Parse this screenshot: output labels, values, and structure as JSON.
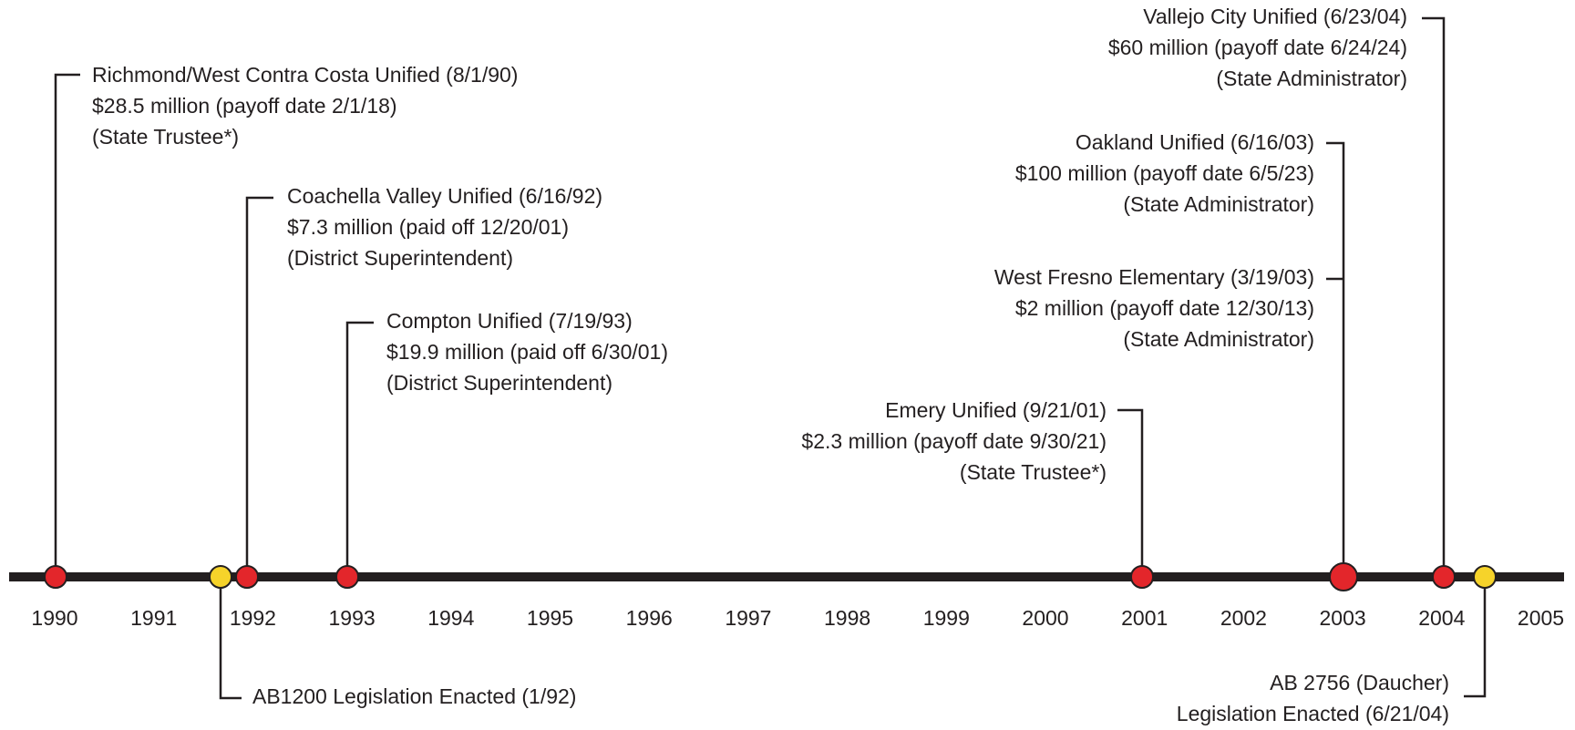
{
  "years": [
    "1990",
    "1991",
    "1992",
    "1993",
    "1994",
    "1995",
    "1996",
    "1997",
    "1998",
    "1999",
    "2000",
    "2001",
    "2002",
    "2003",
    "2004",
    "2005"
  ],
  "events": [
    {
      "lines": [
        "Richmond/West Contra Costa Unified (8/1/90)",
        "$28.5 million (payoff date 2/1/18)",
        "(State Trustee*)"
      ]
    },
    {
      "lines": [
        "Coachella Valley Unified (6/16/92)",
        "$7.3 million (paid off 12/20/01)",
        "(District Superintendent)"
      ]
    },
    {
      "lines": [
        "Compton Unified (7/19/93)",
        "$19.9 million (paid off 6/30/01)",
        "(District Superintendent)"
      ]
    },
    {
      "lines": [
        "Emery Unified (9/21/01)",
        "$2.3 million (payoff date 9/30/21)",
        "(State Trustee*)"
      ]
    },
    {
      "lines": [
        "Oakland Unified (6/16/03)",
        "$100 million (payoff date 6/5/23)",
        "(State Administrator)"
      ]
    },
    {
      "lines": [
        "West Fresno Elementary (3/19/03)",
        "$2 million (payoff date 12/30/13)",
        "(State Administrator)"
      ]
    },
    {
      "lines": [
        "Vallejo City Unified (6/23/04)",
        "$60 million (payoff date 6/24/24)",
        "(State Administrator)"
      ]
    }
  ],
  "legislation": [
    {
      "lines": [
        "AB1200 Legislation Enacted (1/92)"
      ]
    },
    {
      "lines": [
        "AB 2756 (Daucher)",
        "Legislation Enacted (6/21/04)"
      ]
    }
  ]
}
